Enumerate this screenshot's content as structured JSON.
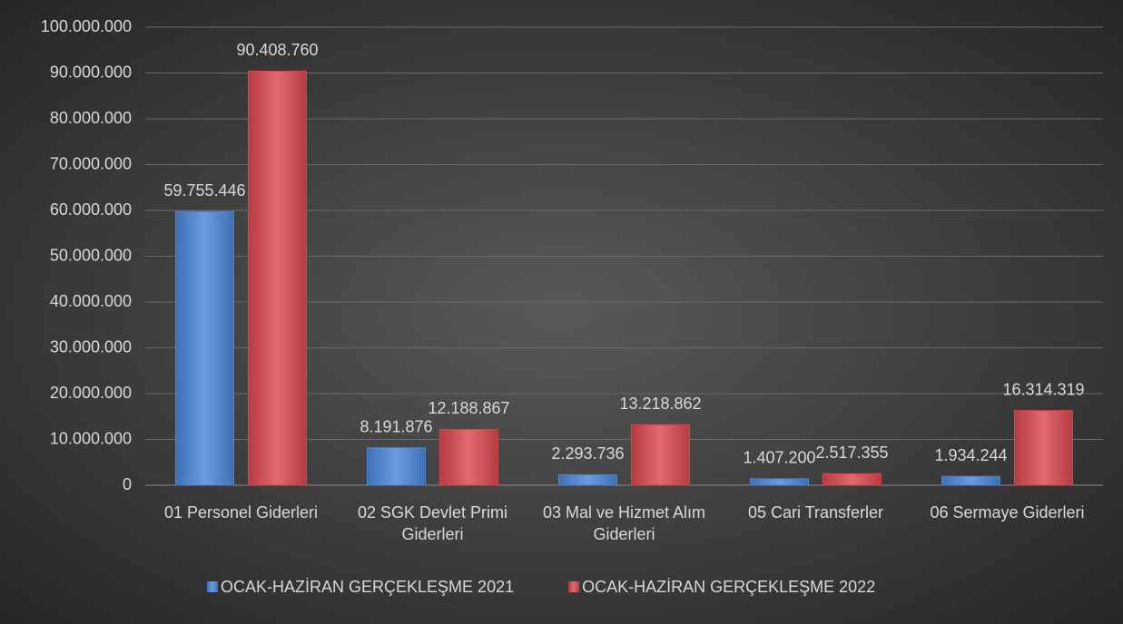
{
  "chart_data": {
    "type": "bar",
    "categories": [
      "01 Personel Giderleri",
      "02 SGK Devlet Primi Giderleri",
      "03 Mal ve Hizmet Alım Giderleri",
      "05 Cari Transferler",
      "06 Sermaye Giderleri"
    ],
    "series": [
      {
        "name": "OCAK-HAZİRAN GERÇEKLEŞME 2021",
        "color": "#4f82c8",
        "values": [
          59755446,
          8191876,
          2293736,
          1407200,
          1934244
        ],
        "value_labels": [
          "59.755.446",
          "8.191.876",
          "2.293.736",
          "1.407.200",
          "1.934.244"
        ]
      },
      {
        "name": "OCAK-HAZİRAN GERÇEKLEŞME 2022",
        "color": "#c94a4e",
        "values": [
          90408760,
          12188867,
          13218862,
          2517355,
          16314319
        ],
        "value_labels": [
          "90.408.760",
          "12.188.867",
          "13.218.862",
          "2.517.355",
          "16.314.319"
        ]
      }
    ],
    "ylim": [
      0,
      100000000
    ],
    "yticks": [
      0,
      {
        "value": 10000000,
        "label": "10.000.000"
      },
      {
        "value": 20000000,
        "label": "20.000.000"
      },
      {
        "value": 30000000,
        "label": "30.000.000"
      },
      {
        "value": 40000000,
        "label": "40.000.000"
      },
      {
        "value": 50000000,
        "label": "50.000.000"
      },
      {
        "value": 60000000,
        "label": "60.000.000"
      },
      {
        "value": 70000000,
        "label": "70.000.000"
      },
      {
        "value": 80000000,
        "label": "80.000.000"
      },
      {
        "value": 90000000,
        "label": "90.000.000"
      },
      {
        "value": 100000000,
        "label": "100.000.000"
      }
    ],
    "grid": true,
    "legend": "bottom"
  }
}
